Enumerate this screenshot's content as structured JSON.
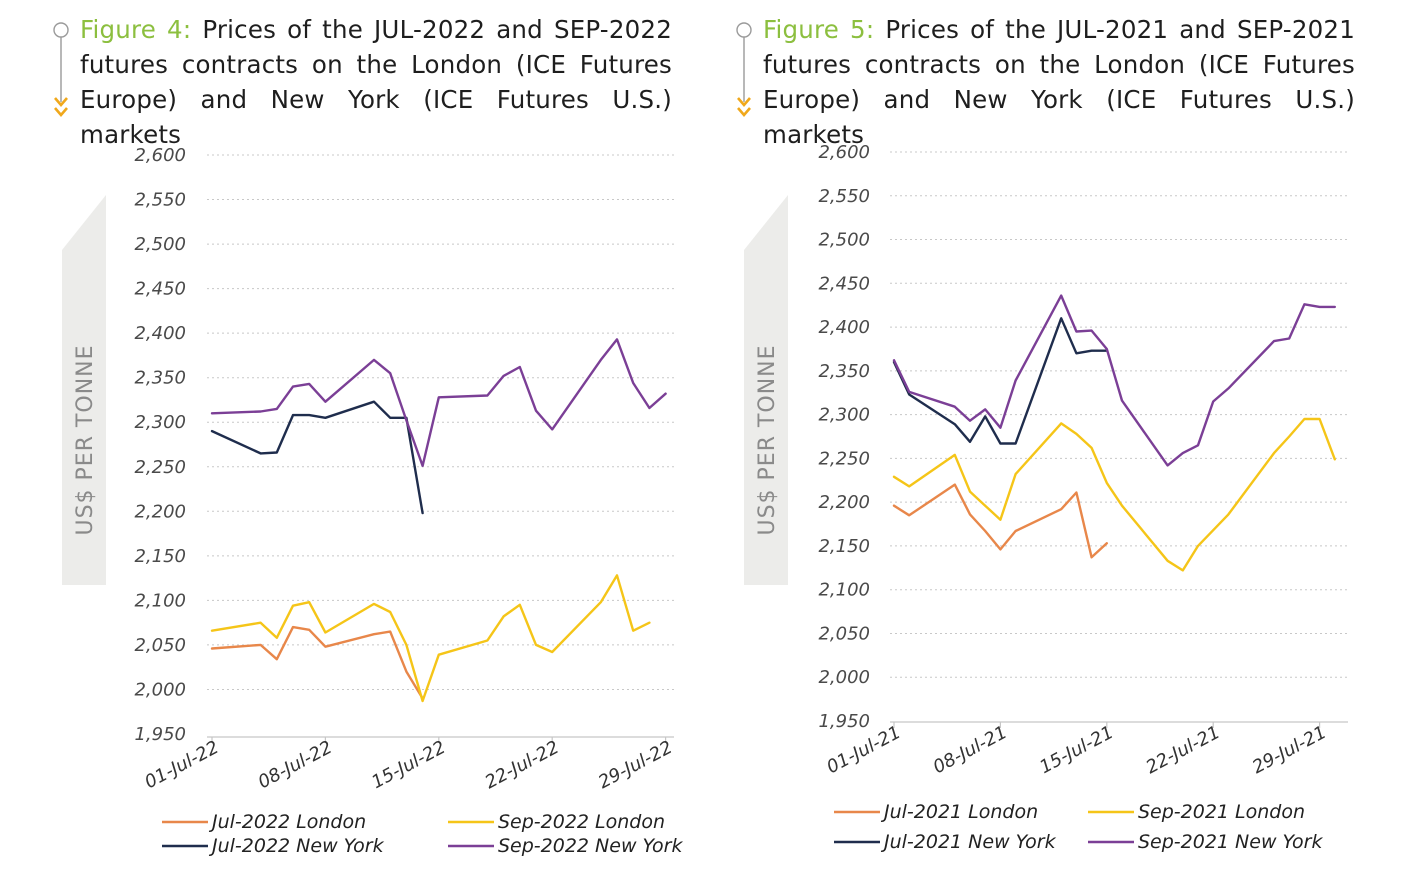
{
  "figures": [
    {
      "fig_label": "Figure 4:",
      "title": "Prices of the JUL-2022 and SEP-2022 futures contracts on the London (ICE Futures Europe) and New York (ICE Futures U.S.) markets"
    },
    {
      "fig_label": "Figure 5:",
      "title": "Prices of the JUL-2021 and SEP-2021 futures contracts on the London (ICE Futures Europe) and New York (ICE Futures U.S.) markets"
    }
  ],
  "colors": {
    "accent_green": "#8cbf3f",
    "deco_orange": "#f0a81c",
    "jul_london": "#e8874a",
    "sep_london": "#f5c518",
    "jul_newyork": "#1f2d4d",
    "sep_newyork": "#7b3f96",
    "grid": "#c8c8c8"
  },
  "chart_data": [
    {
      "type": "line",
      "ylabel": "US$ PER TONNE",
      "ylim": [
        1950,
        2600
      ],
      "yticks": [
        "2,600",
        "2,550",
        "2,500",
        "2,450",
        "2,400",
        "2,350",
        "2,300",
        "2,250",
        "2,200",
        "2,150",
        "2,100",
        "2,050",
        "2,000",
        "1,950"
      ],
      "ytick_values": [
        2600,
        2550,
        2500,
        2450,
        2400,
        2350,
        2300,
        2250,
        2200,
        2150,
        2100,
        2050,
        2000,
        1950
      ],
      "xlim": [
        1,
        30
      ],
      "xticks": [
        "01-Jul-22",
        "08-Jul-22",
        "15-Jul-22",
        "22-Jul-22",
        "29-Jul-22"
      ],
      "xtick_days": [
        1,
        8,
        15,
        22,
        29
      ],
      "grid": true,
      "legend_position": "bottom",
      "series": [
        {
          "name": "Jul-2022 London",
          "color_key": "jul_london",
          "x": [
            1,
            4,
            5,
            6,
            7,
            8,
            11,
            12,
            13,
            14
          ],
          "y": [
            2046,
            2050,
            2034,
            2070,
            2067,
            2048,
            2062,
            2065,
            2020,
            1990
          ]
        },
        {
          "name": "Sep-2022 London",
          "color_key": "sep_london",
          "x": [
            1,
            4,
            5,
            6,
            7,
            8,
            11,
            12,
            13,
            14,
            15,
            18,
            19,
            20,
            21,
            22,
            25,
            26,
            27,
            28
          ],
          "y": [
            2066,
            2075,
            2058,
            2094,
            2098,
            2064,
            2096,
            2087,
            2050,
            1987,
            2039,
            2055,
            2082,
            2095,
            2050,
            2042,
            2098,
            2128,
            2066,
            2075
          ]
        },
        {
          "name": "Jul-2022 New York",
          "color_key": "jul_newyork",
          "x": [
            1,
            4,
            5,
            6,
            7,
            8,
            11,
            12,
            13,
            14
          ],
          "y": [
            2290,
            2265,
            2266,
            2308,
            2308,
            2305,
            2323,
            2305,
            2305,
            2198
          ]
        },
        {
          "name": "Sep-2022 New York",
          "color_key": "sep_newyork",
          "x": [
            1,
            4,
            5,
            6,
            7,
            8,
            11,
            12,
            13,
            14,
            15,
            18,
            19,
            20,
            21,
            22,
            25,
            26,
            27,
            28,
            29
          ],
          "y": [
            2310,
            2312,
            2315,
            2340,
            2343,
            2323,
            2370,
            2355,
            2302,
            2251,
            2328,
            2330,
            2352,
            2362,
            2313,
            2292,
            2370,
            2393,
            2344,
            2316,
            2332
          ]
        }
      ]
    },
    {
      "type": "line",
      "ylabel": "US$ PER TONNE",
      "ylim": [
        1950,
        2600
      ],
      "yticks": [
        "2,600",
        "2,550",
        "2,500",
        "2,450",
        "2,400",
        "2,350",
        "2,300",
        "2,250",
        "2,200",
        "2,150",
        "2,100",
        "2,050",
        "2,000",
        "1,950"
      ],
      "ytick_values": [
        2600,
        2550,
        2500,
        2450,
        2400,
        2350,
        2300,
        2250,
        2200,
        2150,
        2100,
        2050,
        2000,
        1950
      ],
      "xlim": [
        1,
        30
      ],
      "xticks": [
        "01-Jul-21",
        "08-Jul-21",
        "15-Jul-21",
        "22-Jul-21",
        "29-Jul-21"
      ],
      "xtick_days": [
        1,
        8,
        15,
        22,
        29
      ],
      "grid": true,
      "legend_position": "bottom",
      "series": [
        {
          "name": "Jul-2021 London",
          "color_key": "jul_london",
          "x": [
            1,
            2,
            5,
            6,
            7,
            8,
            9,
            12,
            13,
            14,
            15
          ],
          "y": [
            2196,
            2185,
            2220,
            2186,
            2167,
            2146,
            2167,
            2192,
            2211,
            2137,
            2153
          ]
        },
        {
          "name": "Sep-2021 London",
          "color_key": "sep_london",
          "x": [
            1,
            2,
            5,
            6,
            7,
            8,
            9,
            12,
            13,
            14,
            15,
            16,
            19,
            20,
            21,
            22,
            23,
            26,
            27,
            28,
            29,
            30
          ],
          "y": [
            2229,
            2218,
            2254,
            2212,
            2196,
            2180,
            2232,
            2290,
            2278,
            2262,
            2222,
            2196,
            2133,
            2122,
            2150,
            2168,
            2186,
            2256,
            2275,
            2295,
            2295,
            2249
          ]
        },
        {
          "name": "Jul-2021 New York",
          "color_key": "jul_newyork",
          "x": [
            1,
            2,
            5,
            6,
            7,
            8,
            9,
            12,
            13,
            14,
            15
          ],
          "y": [
            2360,
            2323,
            2289,
            2269,
            2298,
            2267,
            2267,
            2410,
            2370,
            2373,
            2373
          ]
        },
        {
          "name": "Sep-2021 New York",
          "color_key": "sep_newyork",
          "x": [
            1,
            2,
            5,
            6,
            7,
            8,
            9,
            12,
            13,
            14,
            15,
            16,
            19,
            20,
            21,
            22,
            23,
            26,
            27,
            28,
            29,
            30
          ],
          "y": [
            2362,
            2326,
            2309,
            2293,
            2306,
            2285,
            2339,
            2436,
            2395,
            2396,
            2375,
            2316,
            2242,
            2256,
            2265,
            2315,
            2330,
            2384,
            2387,
            2426,
            2423,
            2423
          ]
        }
      ]
    }
  ]
}
